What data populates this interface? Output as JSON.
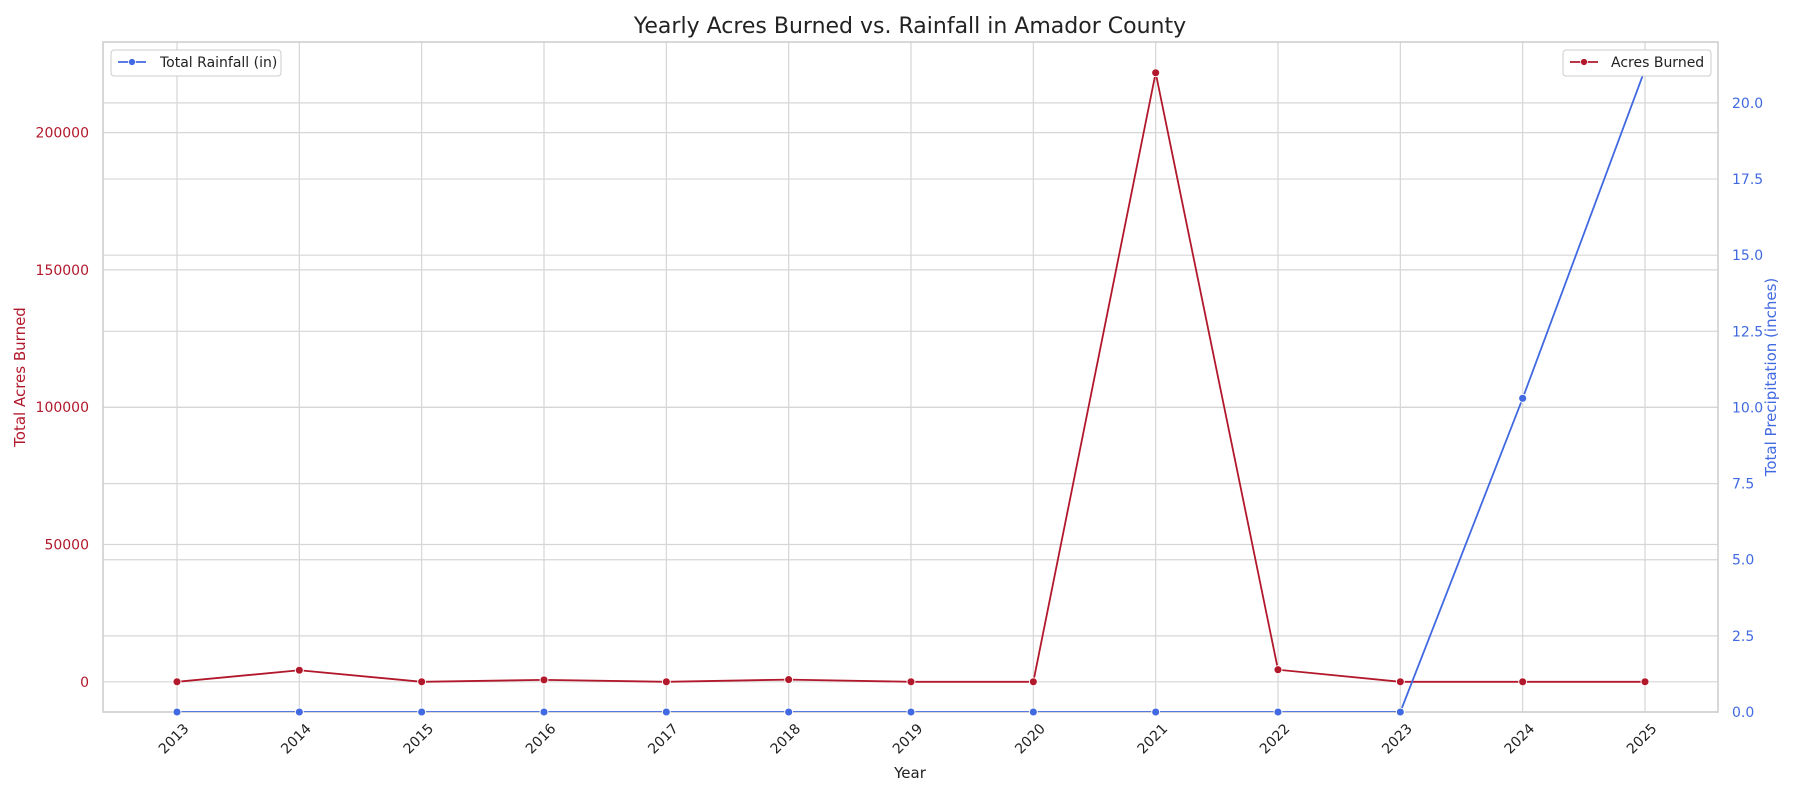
{
  "chart_data": {
    "type": "line",
    "title": "Yearly Acres Burned vs. Rainfall in Amador County",
    "xlabel": "Year",
    "ylabel_left": "Total Acres Burned",
    "ylabel_right": "Total Precipitation (inches)",
    "x": [
      "2013",
      "2014",
      "2015",
      "2016",
      "2017",
      "2018",
      "2019",
      "2020",
      "2021",
      "2022",
      "2023",
      "2024",
      "2025"
    ],
    "y_left": {
      "ylim": [
        -11000,
        233000
      ],
      "ticks": [
        0,
        50000,
        100000,
        150000,
        200000
      ]
    },
    "y_right": {
      "ylim": [
        0,
        22
      ],
      "ticks": [
        0.0,
        2.5,
        5.0,
        7.5,
        10.0,
        12.5,
        15.0,
        17.5,
        20.0,
        22.5
      ]
    },
    "series": [
      {
        "name": "Acres Burned",
        "axis": "left",
        "color": "#b2182b",
        "values": [
          0,
          4200,
          0,
          700,
          0,
          800,
          0,
          0,
          221800,
          4400,
          0,
          0,
          0
        ]
      },
      {
        "name": "Total Rainfall (in)",
        "axis": "right",
        "color": "#4169e1",
        "values": [
          0,
          0,
          0,
          0,
          0,
          0,
          0,
          0,
          0,
          0,
          0,
          10.3,
          21.1
        ]
      }
    ],
    "legends": [
      {
        "label": "Total Rainfall (in)",
        "placement": "upper-left"
      },
      {
        "label": "Acres Burned",
        "placement": "upper-right"
      }
    ],
    "grid": true
  }
}
